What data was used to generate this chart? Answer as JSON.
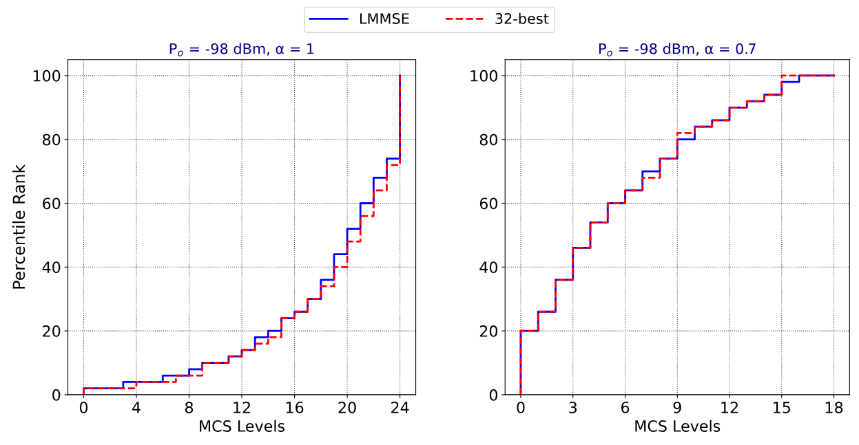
{
  "chart_data": [
    {
      "type": "step",
      "title": "P$_{o}$ = -98 dBm, α = 1",
      "xlabel": "MCS Levels",
      "ylabel": "Percentile Rank",
      "x": [
        0,
        0,
        1,
        2,
        3,
        4,
        5,
        6,
        7,
        8,
        9,
        10,
        11,
        12,
        13,
        14,
        15,
        16,
        17,
        18,
        19,
        20,
        21,
        22,
        23,
        24
      ],
      "series": [
        {
          "name": "LMMSE",
          "color": "#0000ff",
          "line_style": "solid",
          "values": [
            0,
            2,
            2,
            2,
            4,
            4,
            4,
            6,
            6,
            8,
            10,
            10,
            12,
            14,
            18,
            20,
            24,
            26,
            30,
            36,
            44,
            52,
            60,
            68,
            74,
            100
          ]
        },
        {
          "name": "32-best",
          "color": "#ff0000",
          "line_style": "dashed",
          "values": [
            0,
            2,
            2,
            2,
            2,
            4,
            4,
            4,
            6,
            6,
            10,
            10,
            12,
            14,
            16,
            18,
            24,
            26,
            30,
            34,
            40,
            48,
            56,
            64,
            72,
            100
          ]
        }
      ],
      "xlim": [
        -1.2,
        25.2
      ],
      "xticks": [
        0,
        4,
        8,
        12,
        16,
        20,
        24
      ],
      "ylim": [
        0,
        105
      ],
      "yticks": [
        0,
        20,
        40,
        60,
        80,
        100
      ],
      "grid": true,
      "legend": "top"
    },
    {
      "type": "step",
      "title": "P$_{o}$ = -98 dBm, α = 0.7",
      "xlabel": "MCS Levels",
      "x": [
        0,
        0,
        1,
        2,
        3,
        4,
        5,
        6,
        7,
        8,
        9,
        10,
        11,
        12,
        13,
        14,
        15,
        16,
        17,
        18
      ],
      "series": [
        {
          "name": "LMMSE",
          "color": "#0000ff",
          "line_style": "solid",
          "values": [
            0,
            20,
            26,
            36,
            46,
            54,
            60,
            64,
            70,
            74,
            80,
            84,
            86,
            90,
            92,
            94,
            98,
            100,
            100,
            100
          ]
        },
        {
          "name": "32-best",
          "color": "#ff0000",
          "line_style": "dashed",
          "values": [
            0,
            20,
            26,
            36,
            46,
            54,
            60,
            64,
            68,
            74,
            82,
            84,
            86,
            90,
            92,
            94,
            100,
            100,
            100,
            100
          ]
        }
      ],
      "xlim": [
        -0.9,
        18.9
      ],
      "xticks": [
        0,
        3,
        6,
        9,
        12,
        15,
        18
      ],
      "ylim": [
        0,
        105
      ],
      "yticks": [
        0,
        20,
        40,
        60,
        80,
        100
      ],
      "grid": true
    }
  ]
}
